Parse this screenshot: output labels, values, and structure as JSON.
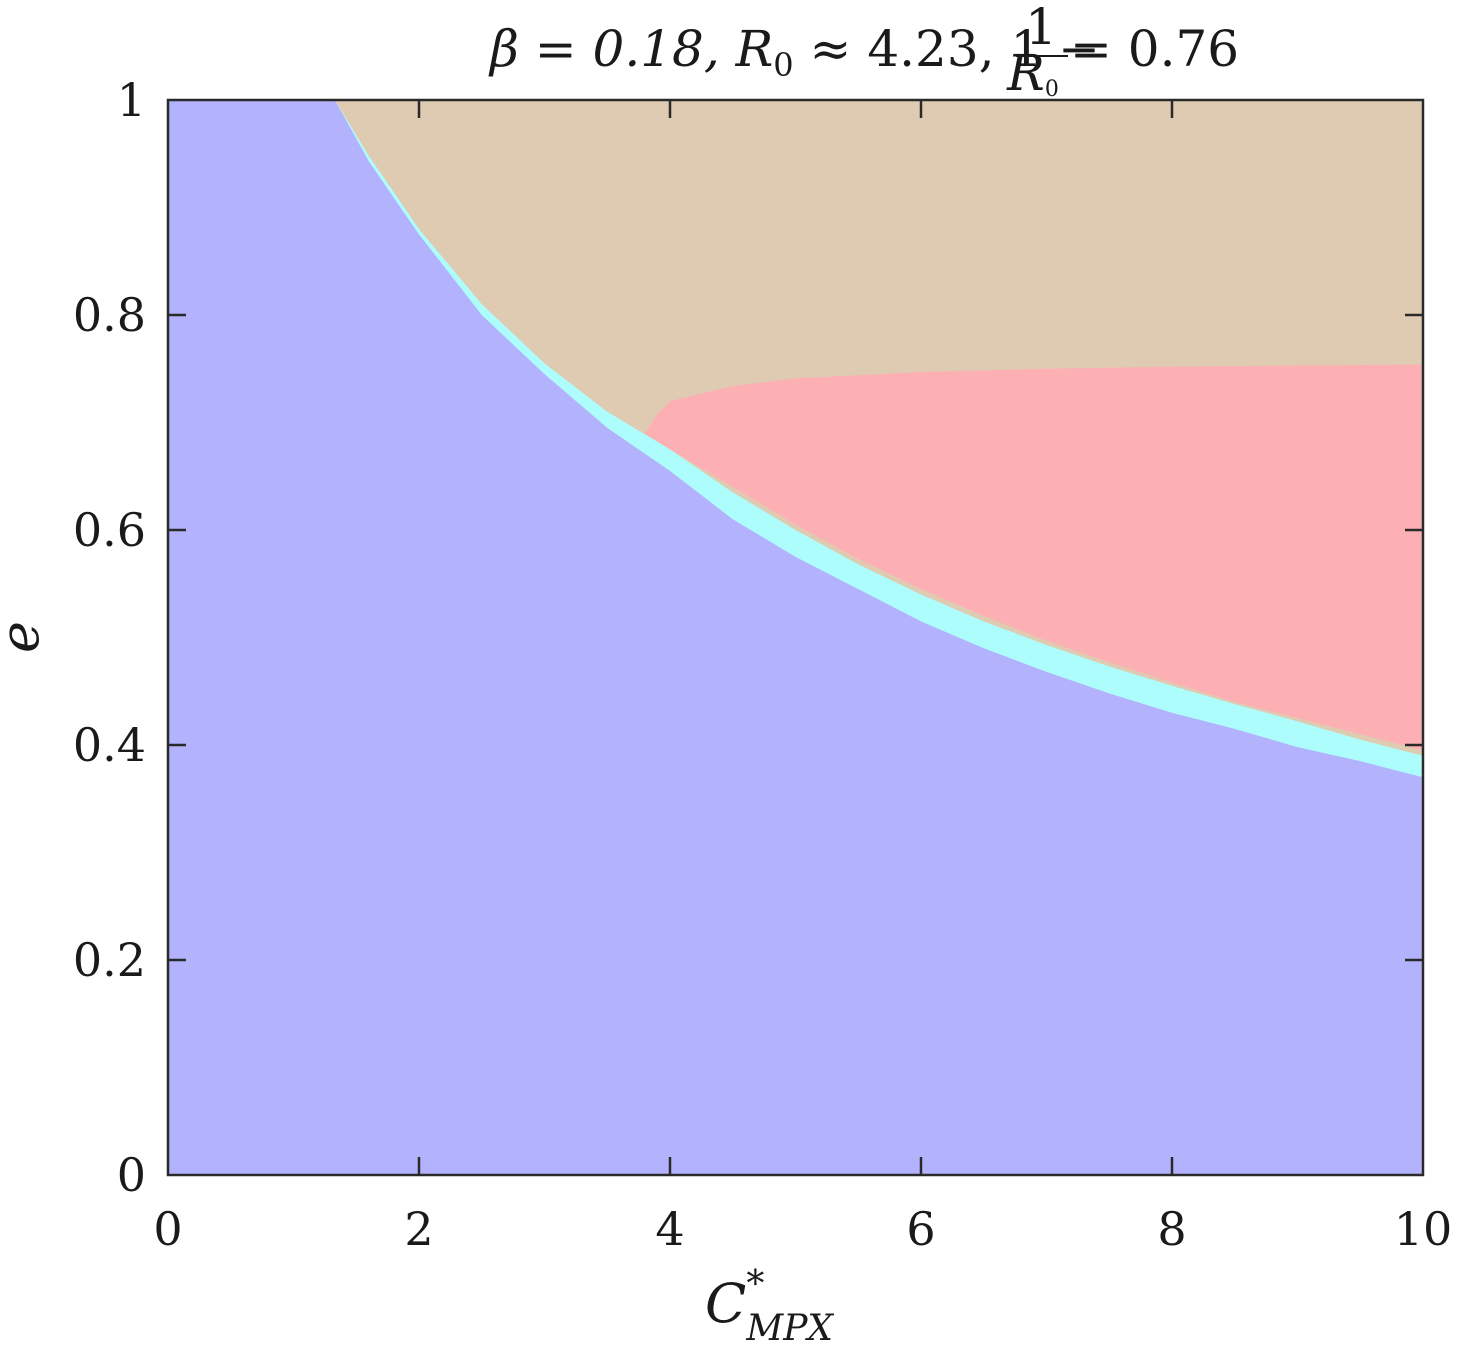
{
  "chart_data": {
    "type": "area",
    "title": {
      "beta_part": "β = 0.18, R",
      "beta_sub": "0",
      "approx_part": " ≈ 4.23, 1 − ",
      "frac_num": "1",
      "frac_den": "R",
      "frac_den_sub": "0",
      "end_part": " = 0.76"
    },
    "xlabel": {
      "main": "C",
      "sup": "*",
      "sub": "MPX"
    },
    "ylabel": "e",
    "xlim": [
      0,
      10
    ],
    "ylim": [
      0,
      1
    ],
    "x_ticks": [
      {
        "value": 0,
        "label": "0"
      },
      {
        "value": 2,
        "label": "2"
      },
      {
        "value": 4,
        "label": "4"
      },
      {
        "value": 6,
        "label": "6"
      },
      {
        "value": 8,
        "label": "8"
      },
      {
        "value": 10,
        "label": "10"
      }
    ],
    "y_ticks": [
      {
        "value": 0,
        "label": "0"
      },
      {
        "value": 0.2,
        "label": "0.2"
      },
      {
        "value": 0.4,
        "label": "0.4"
      },
      {
        "value": 0.6,
        "label": "0.6"
      },
      {
        "value": 0.8,
        "label": "0.8"
      },
      {
        "value": 1,
        "label": "1"
      }
    ],
    "grid": false,
    "colors": {
      "blue": "#b3b3fd",
      "cyan": "#aefdfd",
      "tan": "#dfcab2",
      "pink": "#fdb0b3",
      "axis": "#2a2a2a"
    },
    "regions": {
      "blue_upper_boundary": [
        [
          0,
          1.0
        ],
        [
          1.33,
          1.0
        ],
        [
          1.6,
          0.943
        ],
        [
          2.0,
          0.875
        ],
        [
          2.5,
          0.8
        ],
        [
          3.0,
          0.745
        ],
        [
          3.5,
          0.695
        ],
        [
          4.0,
          0.655
        ],
        [
          4.5,
          0.61
        ],
        [
          5.0,
          0.575
        ],
        [
          5.5,
          0.545
        ],
        [
          6.0,
          0.515
        ],
        [
          6.5,
          0.49
        ],
        [
          7.0,
          0.468
        ],
        [
          7.5,
          0.448
        ],
        [
          8.0,
          0.43
        ],
        [
          8.5,
          0.415
        ],
        [
          9.0,
          0.398
        ],
        [
          9.5,
          0.385
        ],
        [
          10.0,
          0.37
        ]
      ],
      "cyan_upper_boundary": [
        [
          1.33,
          1.0
        ],
        [
          1.6,
          0.948
        ],
        [
          2.0,
          0.88
        ],
        [
          2.5,
          0.81
        ],
        [
          3.0,
          0.755
        ],
        [
          3.5,
          0.71
        ],
        [
          4.0,
          0.675
        ],
        [
          4.5,
          0.635
        ],
        [
          5.0,
          0.6
        ],
        [
          5.5,
          0.568
        ],
        [
          6.0,
          0.54
        ],
        [
          6.5,
          0.515
        ],
        [
          7.0,
          0.493
        ],
        [
          7.5,
          0.473
        ],
        [
          8.0,
          0.455
        ],
        [
          8.5,
          0.438
        ],
        [
          9.0,
          0.422
        ],
        [
          9.5,
          0.405
        ],
        [
          10.0,
          0.39
        ]
      ],
      "pink_top_boundary": [
        [
          3.8,
          0.69
        ],
        [
          3.9,
          0.708
        ],
        [
          4.0,
          0.72
        ],
        [
          4.5,
          0.734
        ],
        [
          5.0,
          0.741
        ],
        [
          6.0,
          0.747
        ],
        [
          7.0,
          0.75
        ],
        [
          8.0,
          0.752
        ],
        [
          9.0,
          0.753
        ],
        [
          10.0,
          0.754
        ]
      ],
      "pink_bottom_boundary": [
        [
          3.8,
          0.69
        ],
        [
          4.0,
          0.675
        ],
        [
          4.5,
          0.64
        ],
        [
          5.0,
          0.605
        ],
        [
          5.5,
          0.573
        ],
        [
          6.0,
          0.545
        ],
        [
          6.5,
          0.52
        ],
        [
          7.0,
          0.497
        ],
        [
          7.5,
          0.477
        ],
        [
          8.0,
          0.458
        ],
        [
          8.5,
          0.44
        ],
        [
          9.0,
          0.425
        ],
        [
          9.5,
          0.41
        ],
        [
          10.0,
          0.395
        ]
      ]
    }
  }
}
